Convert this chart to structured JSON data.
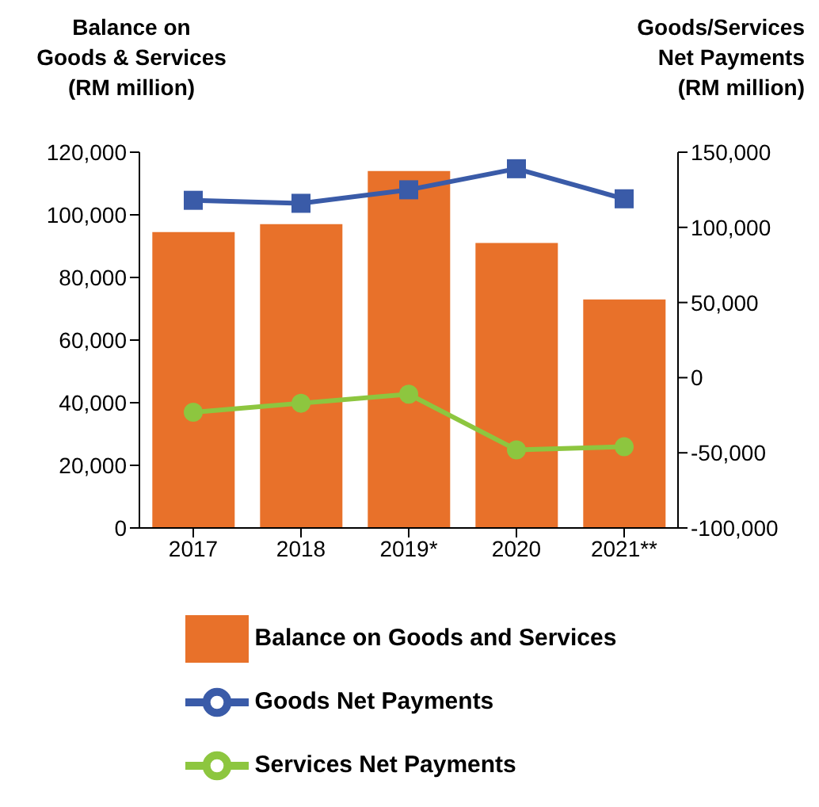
{
  "chart_data": {
    "type": "bar",
    "ylabel": "Balance on\nGoods &  Services\n(RM million)",
    "y2label": "Goods/Services\nNet Payments\n(RM million)",
    "categories": [
      "2017",
      "2018",
      "2019*",
      "2020",
      "2021**"
    ],
    "series": [
      {
        "name": "Balance on Goods and Services",
        "color": "#e8712a",
        "values": [
          94500,
          97000,
          114000,
          91000,
          73000
        ]
      },
      {
        "name": "Goods Net Payments",
        "type": "line",
        "axis": "y2",
        "marker": "square",
        "color": "#3a5ba8",
        "values": [
          118000,
          116000,
          125000,
          139000,
          119000
        ]
      },
      {
        "name": "Services Net Payments",
        "type": "line",
        "axis": "y2",
        "marker": "circle",
        "color": "#8dc63f",
        "values": [
          -23000,
          -17000,
          -11000,
          -48000,
          -46000
        ]
      }
    ],
    "ylim": [
      0,
      120000
    ],
    "yticks": [
      0,
      {
        "value": 20000,
        "label": "20,000"
      },
      {
        "value": 40000,
        "label": "40,000"
      },
      {
        "value": 60000,
        "label": "60,000"
      },
      {
        "value": 80000,
        "label": "80,000"
      },
      {
        "value": 100000,
        "label": "100,000"
      },
      {
        "value": 120000,
        "label": "120,000"
      }
    ],
    "y2lim": [
      -100000,
      150000
    ],
    "y2ticks": [
      {
        "value": -100000,
        "label": "-100,000"
      },
      {
        "value": -50000,
        "label": "-50,000"
      },
      0,
      {
        "value": 50000,
        "label": "50,000"
      },
      {
        "value": 100000,
        "label": "100,000"
      },
      {
        "value": 150000,
        "label": "150,000"
      }
    ],
    "legend": "bottom"
  }
}
